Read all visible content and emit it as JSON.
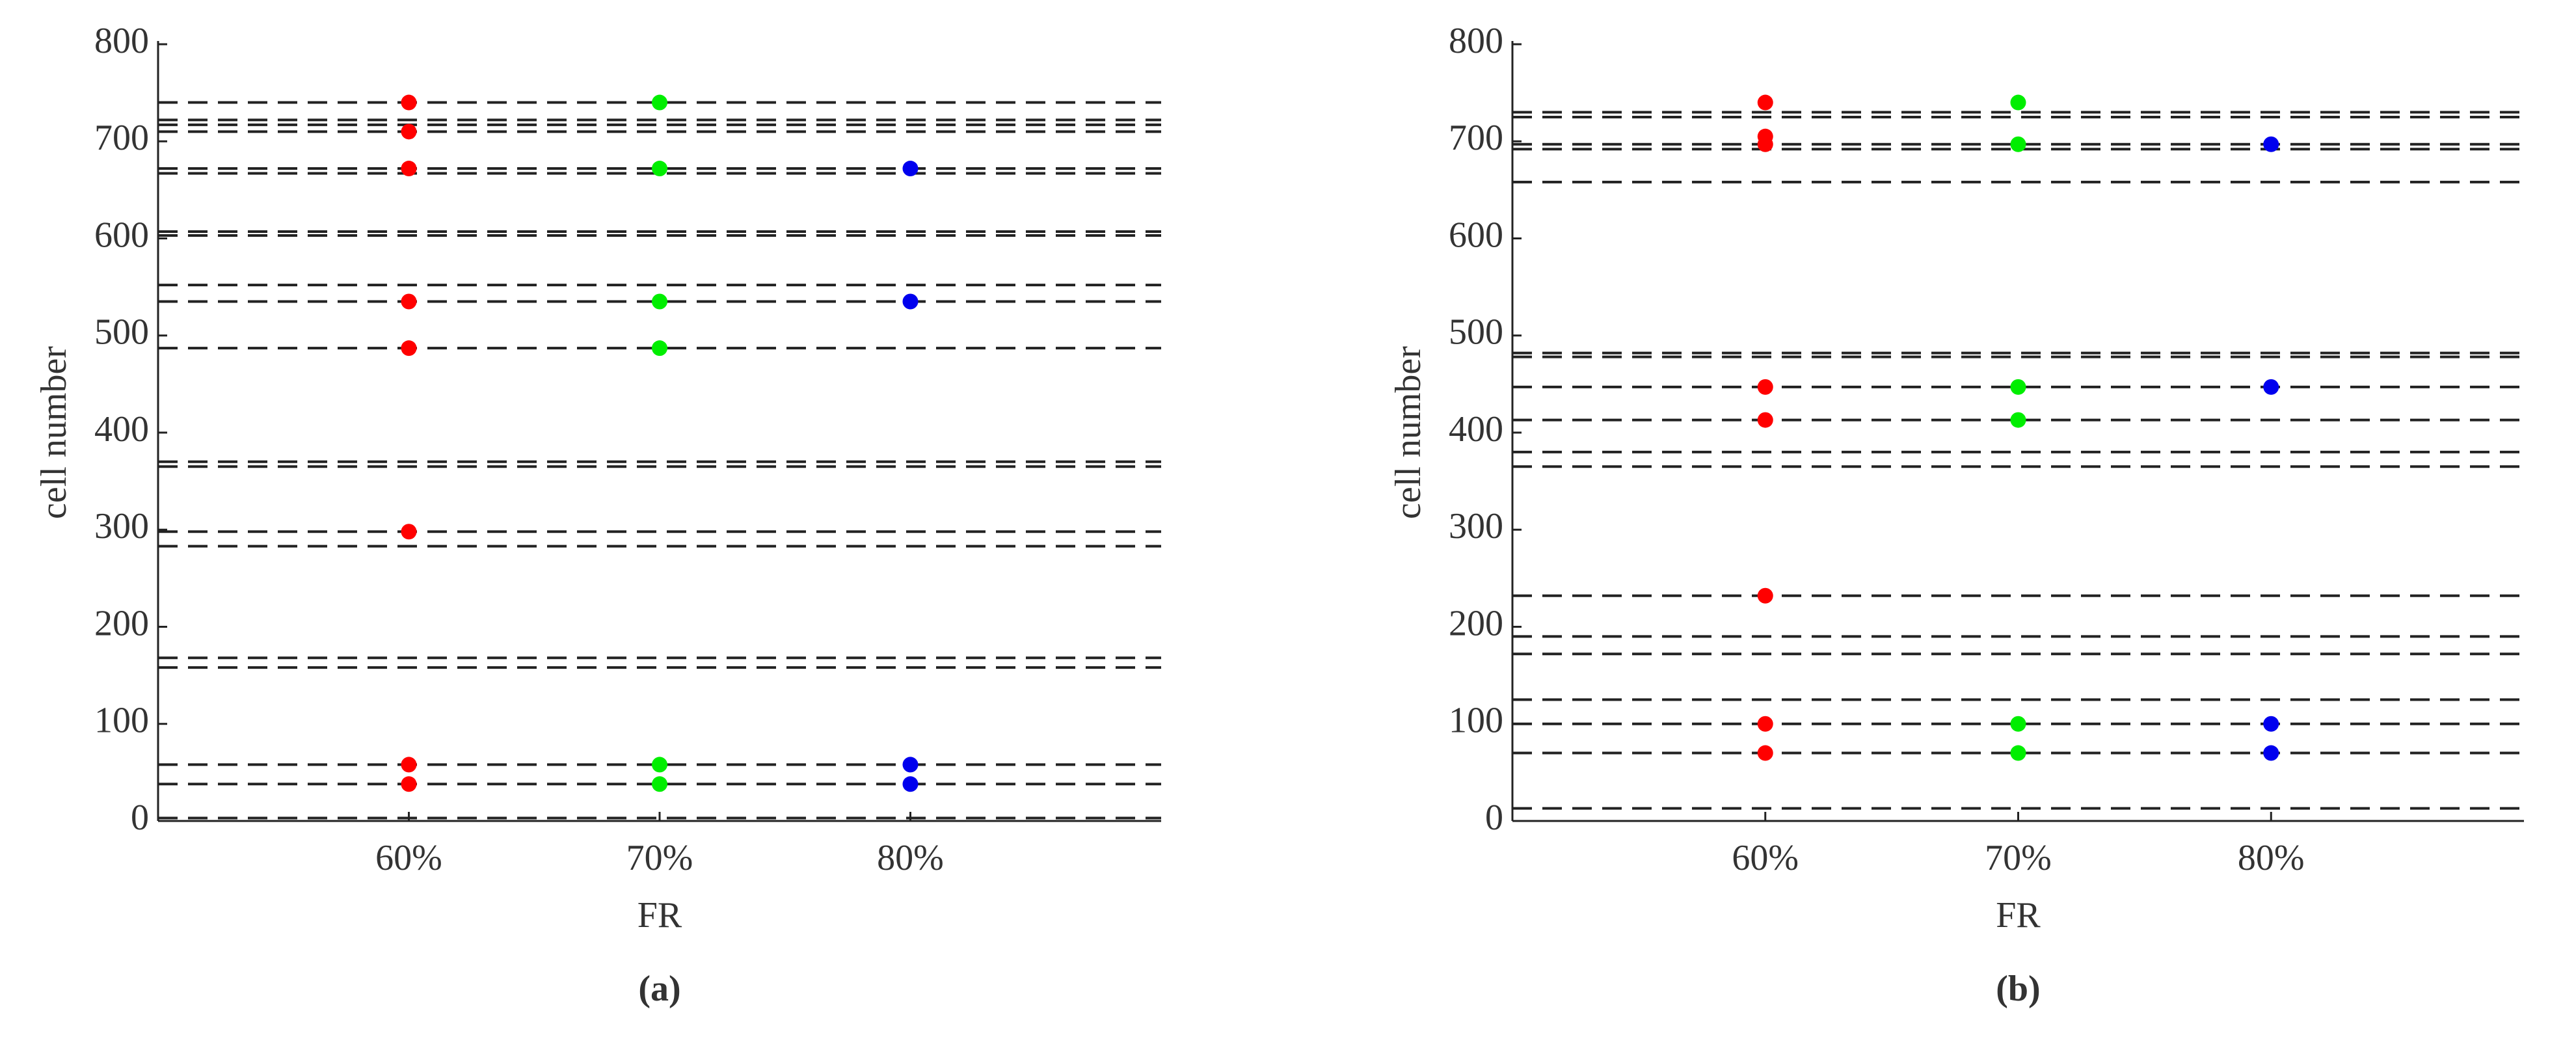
{
  "chart_data": [
    {
      "type": "scatter",
      "caption": "(a)",
      "xlabel": "FR",
      "ylabel": "cell number",
      "xlim": [
        50,
        90
      ],
      "xticks": [
        {
          "value": 60,
          "label": "60%"
        },
        {
          "value": 70,
          "label": "70%"
        },
        {
          "value": 80,
          "label": "80%"
        }
      ],
      "ylim": [
        0,
        800
      ],
      "yticks": [
        0,
        100,
        200,
        300,
        400,
        500,
        600,
        700,
        800
      ],
      "hlines": [
        740,
        722,
        717,
        710,
        672,
        667,
        607,
        603,
        552,
        535,
        487,
        370,
        365,
        298,
        283,
        168,
        158,
        58,
        38,
        3
      ],
      "series": [
        {
          "color": "#ff0000",
          "x": [
            60,
            60,
            60,
            60,
            60,
            60,
            60,
            60
          ],
          "values": [
            740,
            710,
            672,
            535,
            487,
            298,
            58,
            38
          ]
        },
        {
          "color": "#00ee00",
          "x": [
            70,
            70,
            70,
            70,
            70,
            70
          ],
          "values": [
            740,
            672,
            535,
            487,
            58,
            38
          ]
        },
        {
          "color": "#0000ee",
          "x": [
            80,
            80,
            80,
            80
          ],
          "values": [
            672,
            535,
            58,
            38
          ]
        }
      ]
    },
    {
      "type": "scatter",
      "caption": "(b)",
      "xlabel": "FR",
      "ylabel": "cell number",
      "xlim": [
        50,
        90
      ],
      "xticks": [
        {
          "value": 60,
          "label": "60%"
        },
        {
          "value": 70,
          "label": "70%"
        },
        {
          "value": 80,
          "label": "80%"
        }
      ],
      "ylim": [
        0,
        800
      ],
      "yticks": [
        0,
        100,
        200,
        300,
        400,
        500,
        600,
        700,
        800
      ],
      "hlines": [
        730,
        725,
        697,
        692,
        658,
        482,
        478,
        447,
        413,
        380,
        365,
        232,
        190,
        172,
        125,
        100,
        70,
        13
      ],
      "series": [
        {
          "color": "#ff0000",
          "x": [
            60,
            60,
            60,
            60,
            60,
            60,
            60,
            60
          ],
          "values": [
            740,
            705,
            697,
            447,
            413,
            232,
            100,
            70
          ]
        },
        {
          "color": "#00ee00",
          "x": [
            70,
            70,
            70,
            70,
            70,
            70
          ],
          "values": [
            740,
            697,
            447,
            413,
            100,
            70
          ]
        },
        {
          "color": "#0000ee",
          "x": [
            80,
            80,
            80,
            80
          ],
          "values": [
            697,
            447,
            100,
            70
          ]
        }
      ]
    }
  ]
}
